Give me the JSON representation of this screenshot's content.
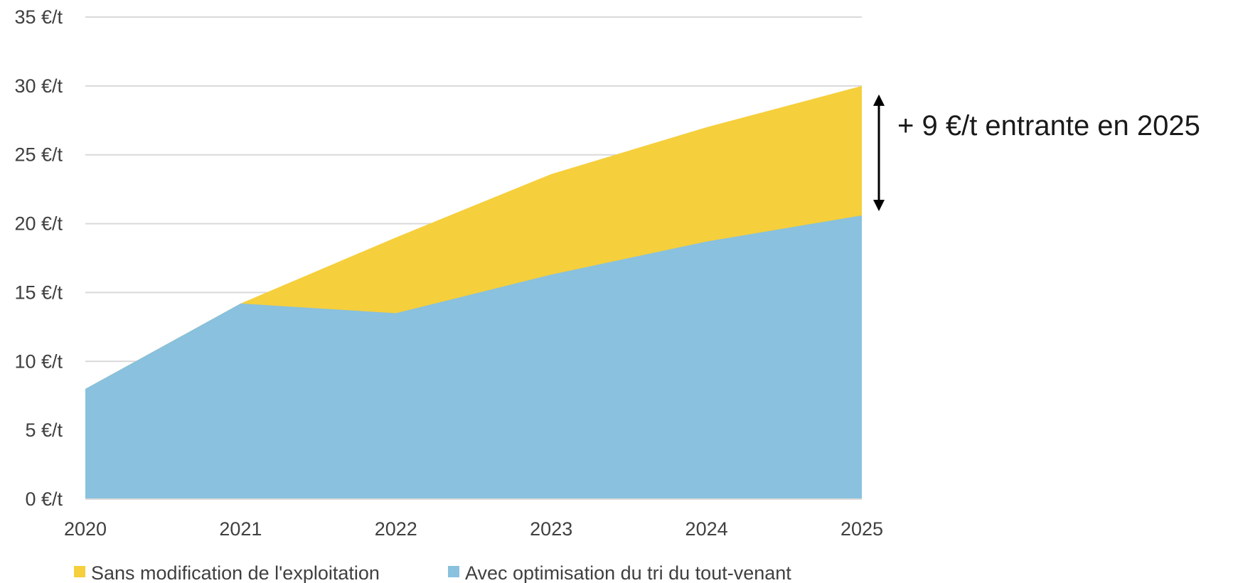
{
  "chart_data": {
    "type": "area",
    "categories": [
      "2020",
      "2021",
      "2022",
      "2023",
      "2024",
      "2025"
    ],
    "series": [
      {
        "name": "Sans modification de l'exploitation",
        "values": [
          8.0,
          14.2,
          19.0,
          23.6,
          27.0,
          30.0
        ],
        "color": "#F5CF3C"
      },
      {
        "name": "Avec optimisation du tri du tout-venant",
        "values": [
          8.0,
          14.2,
          13.5,
          16.3,
          18.7,
          20.6
        ],
        "color": "#89C1DE"
      }
    ],
    "y_ticks": [
      "0 €/t",
      "5 €/t",
      "10 €/t",
      "15 €/t",
      "20 €/t",
      "25 €/t",
      "30 €/t",
      "35 €/t"
    ],
    "y_tick_values": [
      0,
      5,
      10,
      15,
      20,
      25,
      30,
      35
    ],
    "ylim": [
      0,
      35
    ],
    "grid": true,
    "legend_position": "bottom-left",
    "annotation": {
      "text": "+ 9 €/t entrante en 2025",
      "from_value": 20.6,
      "to_value": 30.0
    },
    "colors": {
      "grid": "#D9D9D9",
      "tick_text": "#404040",
      "arrow": "#000000"
    }
  }
}
